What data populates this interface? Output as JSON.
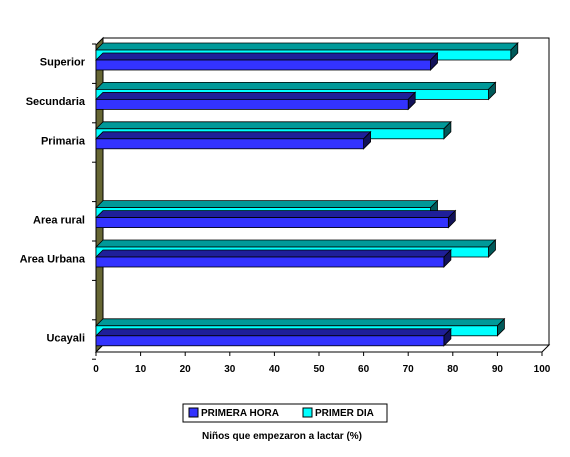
{
  "chart_data": {
    "type": "bar",
    "orientation": "horizontal",
    "style": "3d",
    "categories": [
      "Superior",
      "Secundaria",
      "Primaria",
      "",
      "Area rural",
      "Area Urbana",
      "",
      "Ucayali"
    ],
    "series": [
      {
        "name": "PRIMERA HORA",
        "color": "#3333ff",
        "values": [
          75,
          70,
          60,
          null,
          79,
          78,
          null,
          78
        ]
      },
      {
        "name": "PRIMER DIA",
        "color": "#00ffff",
        "values": [
          93,
          88,
          78,
          null,
          75,
          88,
          null,
          90
        ]
      }
    ],
    "xlim": [
      0,
      100
    ],
    "xticks": [
      0,
      10,
      20,
      30,
      40,
      50,
      60,
      70,
      80,
      90,
      100
    ],
    "xlabel": "Niños que empezaron a lactar (%)",
    "legend_position": "bottom",
    "grid": false,
    "wall_color": "#666633"
  }
}
